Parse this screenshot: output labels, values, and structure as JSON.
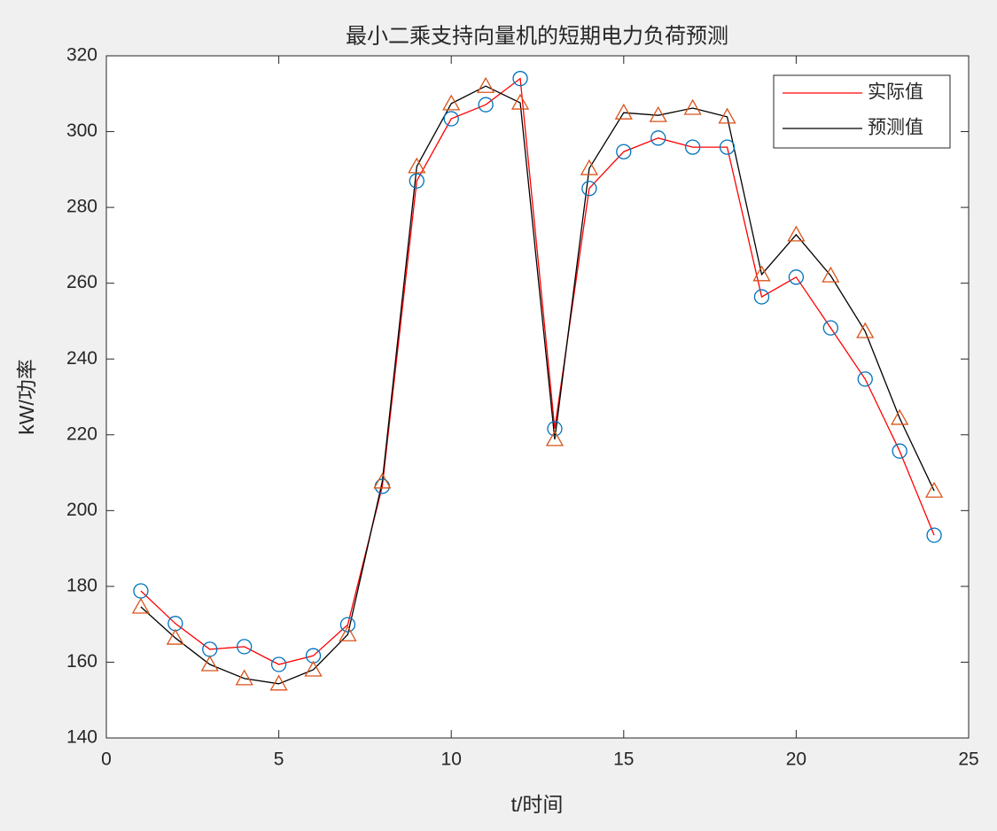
{
  "chart_data": {
    "type": "line",
    "title": "最小二乘支持向量机的短期电力负荷预测",
    "x_label": "t/时间",
    "y_label": "kW/功率",
    "x": [
      1,
      2,
      3,
      4,
      5,
      6,
      7,
      8,
      9,
      10,
      11,
      12,
      13,
      14,
      15,
      16,
      17,
      18,
      19,
      20,
      21,
      22,
      23,
      24
    ],
    "series": [
      {
        "name": "实际值",
        "color": "#ff0000",
        "marker": "circle",
        "marker_color": "#0072bd",
        "values": [
          178.8,
          170.2,
          163.4,
          164.1,
          159.4,
          161.7,
          169.9,
          206.4,
          287,
          303.4,
          307.1,
          314,
          221.6,
          285,
          294.7,
          298.3,
          295.9,
          295.9,
          256.4,
          261.6,
          248.2,
          234.7,
          215.7,
          193.5
        ]
      },
      {
        "name": "预测值",
        "color": "#000000",
        "marker": "triangle",
        "marker_color": "#d95319",
        "values": [
          174.6,
          166.4,
          159.4,
          155.7,
          154.3,
          158,
          167.3,
          207.6,
          290.8,
          307.4,
          312,
          307.6,
          218.8,
          290.3,
          305,
          304.3,
          306.2,
          303.9,
          262.3,
          272.8,
          262,
          247.3,
          224.4,
          205.2
        ]
      }
    ],
    "xlim": [
      0,
      25
    ],
    "xticks": [
      0,
      5,
      10,
      15,
      20,
      25
    ],
    "ylim": [
      140,
      320
    ],
    "yticks": [
      140,
      160,
      180,
      200,
      220,
      240,
      260,
      280,
      300,
      320
    ],
    "grid": false,
    "legend": "northeast"
  }
}
